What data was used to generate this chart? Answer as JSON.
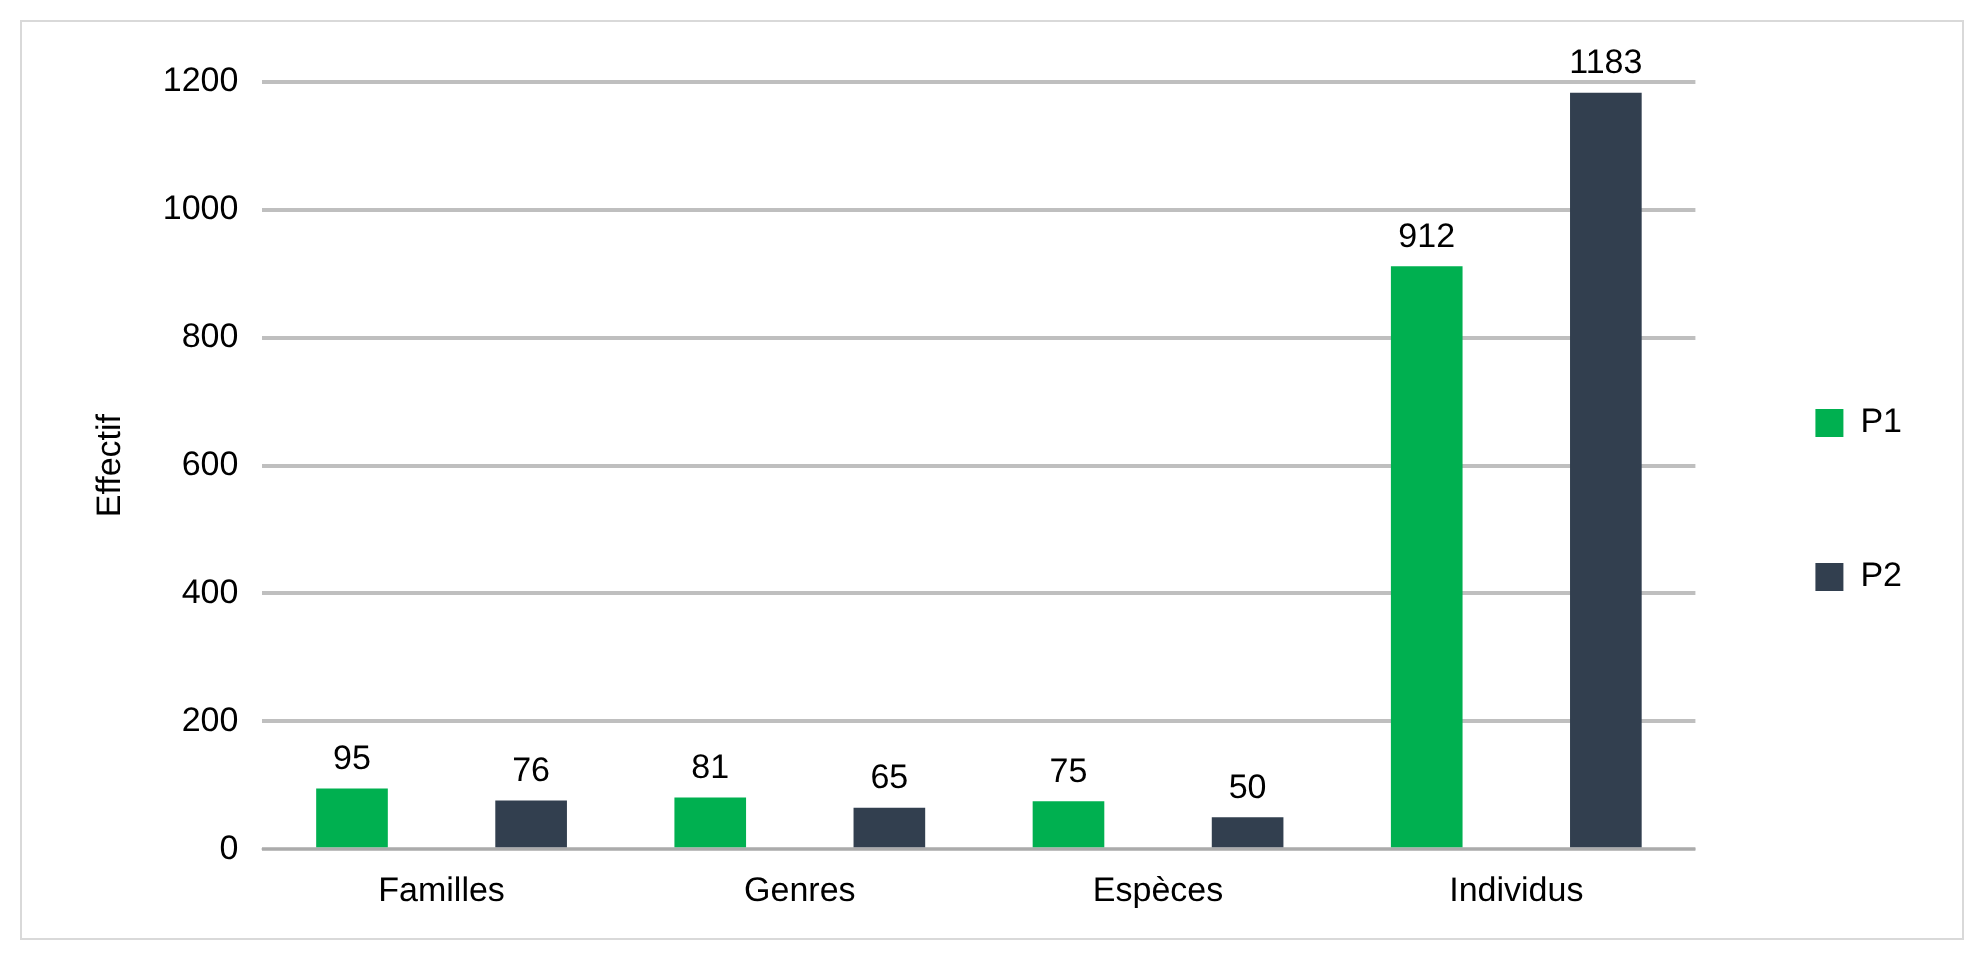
{
  "chart_data": {
    "type": "bar",
    "ylabel": "Effectif",
    "categories": [
      "Familles",
      "Genres",
      "Espèces",
      "Individus"
    ],
    "series": [
      {
        "name": "P1",
        "color": "#00b050",
        "values": [
          95,
          81,
          75,
          912
        ]
      },
      {
        "name": "P2",
        "color": "#323f4f",
        "values": [
          76,
          65,
          50,
          1183
        ]
      }
    ],
    "ylim": [
      0,
      1200
    ],
    "yticks": [
      0,
      200,
      400,
      600,
      800,
      1000,
      1200
    ],
    "grid": "y",
    "legend": "right",
    "data_labels": true
  }
}
